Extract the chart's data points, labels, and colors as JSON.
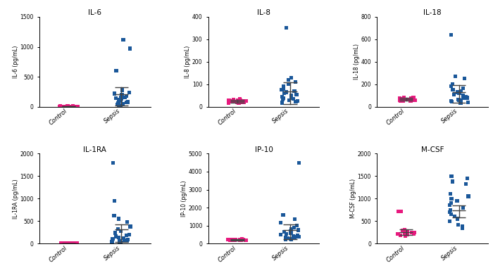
{
  "panels": [
    {
      "title": "IL-6",
      "ylabel": "IL-6 (pg/mL)",
      "ylim": [
        0,
        1500
      ],
      "yticks": [
        0,
        500,
        1000,
        1500
      ],
      "control": [
        5,
        8,
        3,
        10,
        6,
        4,
        7,
        9,
        5,
        8,
        6,
        4,
        7,
        5,
        3,
        6,
        8,
        10,
        5,
        7
      ],
      "sepsis": [
        1120,
        970,
        600,
        280,
        240,
        220,
        200,
        180,
        160,
        150,
        140,
        130,
        120,
        100,
        90,
        80,
        75,
        60,
        50,
        40,
        25,
        20
      ],
      "sepsis_bar_mean": 210,
      "sepsis_bar_upper": 330,
      "sepsis_bar_lower": 20,
      "control_bar_mean": 6,
      "control_bar_upper": 12,
      "control_bar_lower": 1
    },
    {
      "title": "IL-8",
      "ylabel": "IL-8 (pg/mL)",
      "ylim": [
        0,
        400
      ],
      "yticks": [
        0,
        100,
        200,
        300,
        400
      ],
      "control": [
        32,
        28,
        22,
        30,
        25,
        20,
        35,
        18,
        28,
        22,
        25,
        30,
        20,
        25,
        18,
        30,
        22,
        28,
        20,
        25
      ],
      "sepsis": [
        350,
        130,
        120,
        110,
        100,
        90,
        80,
        75,
        70,
        65,
        60,
        55,
        50,
        45,
        40,
        38,
        35,
        32,
        28,
        25,
        22,
        18
      ],
      "sepsis_bar_mean": 68,
      "sepsis_bar_upper": 108,
      "sepsis_bar_lower": 12,
      "control_bar_mean": 25,
      "control_bar_upper": 32,
      "control_bar_lower": 18
    },
    {
      "title": "IL-18",
      "ylabel": "IL-18 (pg/mL)",
      "ylim": [
        0,
        800
      ],
      "yticks": [
        0,
        200,
        400,
        600,
        800
      ],
      "control": [
        65,
        75,
        55,
        70,
        80,
        60,
        75,
        55,
        70,
        65,
        80,
        60,
        75,
        65,
        70,
        55,
        65,
        70,
        60,
        75
      ],
      "sepsis": [
        640,
        270,
        250,
        200,
        185,
        165,
        150,
        140,
        130,
        120,
        110,
        100,
        90,
        80,
        75,
        65,
        60,
        55,
        50,
        45,
        40,
        35
      ],
      "sepsis_bar_mean": 128,
      "sepsis_bar_upper": 195,
      "sepsis_bar_lower": 38,
      "control_bar_mean": 68,
      "control_bar_upper": 78,
      "control_bar_lower": 55
    },
    {
      "title": "IL-1RA",
      "ylabel": "IL-1RA (pg/mL)",
      "ylim": [
        0,
        2000
      ],
      "yticks": [
        0,
        500,
        1000,
        1500,
        2000
      ],
      "control": [
        5,
        8,
        4,
        7,
        6,
        5,
        9,
        4,
        7,
        5,
        6,
        8,
        4,
        7,
        5,
        6,
        8,
        5,
        7,
        4
      ],
      "sepsis": [
        1800,
        950,
        620,
        550,
        480,
        380,
        320,
        280,
        240,
        200,
        180,
        160,
        140,
        120,
        100,
        90,
        80,
        70,
        60,
        50,
        40,
        30
      ],
      "sepsis_bar_mean": 310,
      "sepsis_bar_upper": 430,
      "sepsis_bar_lower": 28,
      "control_bar_mean": 6,
      "control_bar_upper": 10,
      "control_bar_lower": 2
    },
    {
      "title": "IP-10",
      "ylabel": "IP-10 (pg/mL)",
      "ylim": [
        0,
        5000
      ],
      "yticks": [
        0,
        1000,
        2000,
        3000,
        4000,
        5000
      ],
      "control": [
        220,
        200,
        250,
        180,
        210,
        230,
        195,
        215,
        200,
        240,
        185,
        220,
        200,
        230,
        210,
        195,
        220,
        200,
        215,
        205
      ],
      "sepsis": [
        4500,
        1600,
        1350,
        1150,
        1000,
        900,
        800,
        750,
        700,
        650,
        600,
        550,
        500,
        450,
        400,
        380,
        360,
        320,
        290,
        260,
        240,
        210
      ],
      "sepsis_bar_mean": 750,
      "sepsis_bar_upper": 1050,
      "sepsis_bar_lower": 240,
      "control_bar_mean": 210,
      "control_bar_upper": 260,
      "control_bar_lower": 155
    },
    {
      "title": "M-CSF",
      "ylabel": "M-CSF (pg/mL)",
      "ylim": [
        0,
        2000
      ],
      "yticks": [
        0,
        500,
        1000,
        1500,
        2000
      ],
      "control": [
        720,
        710,
        300,
        285,
        270,
        260,
        250,
        245,
        240,
        235,
        220,
        215,
        210,
        200,
        185,
        175,
        165
      ],
      "sepsis": [
        1500,
        1450,
        1380,
        1320,
        1100,
        1050,
        1000,
        950,
        900,
        850,
        800,
        750,
        700,
        650,
        600,
        550,
        500,
        420,
        380,
        340
      ],
      "sepsis_bar_mean": 740,
      "sepsis_bar_upper": 850,
      "sepsis_bar_lower": 590,
      "control_bar_mean": 255,
      "control_bar_upper": 310,
      "control_bar_lower": 185
    }
  ],
  "control_color": "#E8197E",
  "sepsis_color": "#1A5799",
  "marker_size": 14,
  "bar_color": "#444444",
  "bar_linewidth": 1.0,
  "tick_fontsize": 5.5,
  "label_fontsize": 5.5,
  "title_fontsize": 7.5
}
